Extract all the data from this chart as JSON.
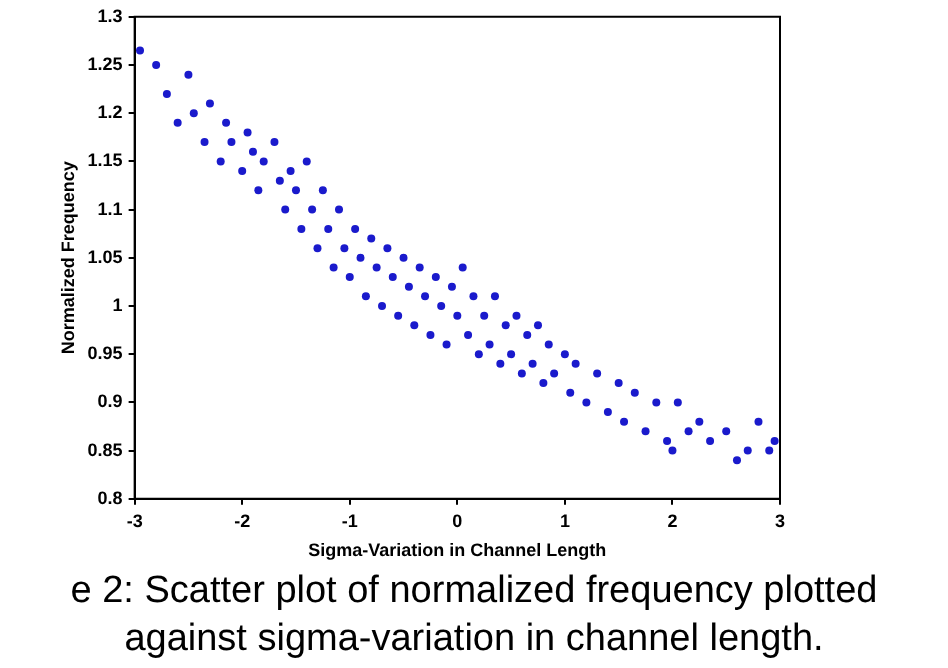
{
  "chart_data": {
    "type": "scatter",
    "xlabel": "Sigma-Variation in Channel Length",
    "ylabel": "Normalized Frequency",
    "xlim": [
      -3,
      3
    ],
    "xticks": [
      -3,
      -2,
      -1,
      0,
      1,
      2,
      3
    ],
    "ylim": [
      0.8,
      1.3
    ],
    "yticks": [
      0.8,
      0.85,
      0.9,
      0.95,
      1,
      1.05,
      1.1,
      1.15,
      1.2,
      1.25,
      1.3
    ],
    "grid": false,
    "legend": false,
    "marker": "circle",
    "annotations": [
      "e 2: Scatter plot of normalized frequency plotted",
      "against sigma-variation in channel length."
    ],
    "series": [
      {
        "color": "#1a1acc",
        "x": [
          -2.95,
          -2.8,
          -2.7,
          -2.6,
          -2.5,
          -2.45,
          -2.35,
          -2.3,
          -2.2,
          -2.15,
          -2.1,
          -2.0,
          -1.95,
          -1.9,
          -1.85,
          -1.8,
          -1.7,
          -1.65,
          -1.6,
          -1.55,
          -1.5,
          -1.45,
          -1.4,
          -1.35,
          -1.3,
          -1.25,
          -1.2,
          -1.15,
          -1.1,
          -1.05,
          -1.0,
          -0.95,
          -0.9,
          -0.85,
          -0.8,
          -0.75,
          -0.7,
          -0.65,
          -0.6,
          -0.55,
          -0.5,
          -0.45,
          -0.4,
          -0.35,
          -0.3,
          -0.25,
          -0.2,
          -0.15,
          -0.1,
          -0.05,
          0,
          0.05,
          0.1,
          0.15,
          0.2,
          0.25,
          0.3,
          0.35,
          0.4,
          0.45,
          0.5,
          0.55,
          0.6,
          0.65,
          0.7,
          0.75,
          0.8,
          0.85,
          0.9,
          1.0,
          1.05,
          1.1,
          1.2,
          1.3,
          1.4,
          1.5,
          1.55,
          1.65,
          1.75,
          1.85,
          1.95,
          2.0,
          2.05,
          2.15,
          2.25,
          2.35,
          2.5,
          2.6,
          2.7,
          2.8,
          2.9,
          2.95
        ],
        "values": [
          1.265,
          1.25,
          1.22,
          1.19,
          1.24,
          1.2,
          1.17,
          1.21,
          1.15,
          1.19,
          1.17,
          1.14,
          1.18,
          1.16,
          1.12,
          1.15,
          1.17,
          1.13,
          1.1,
          1.14,
          1.12,
          1.08,
          1.15,
          1.1,
          1.06,
          1.12,
          1.08,
          1.04,
          1.1,
          1.06,
          1.03,
          1.08,
          1.05,
          1.01,
          1.07,
          1.04,
          1.0,
          1.06,
          1.03,
          0.99,
          1.05,
          1.02,
          0.98,
          1.04,
          1.01,
          0.97,
          1.03,
          1.0,
          0.96,
          1.02,
          0.99,
          1.04,
          0.97,
          1.01,
          0.95,
          0.99,
          0.96,
          1.01,
          0.94,
          0.98,
          0.95,
          0.99,
          0.93,
          0.97,
          0.94,
          0.98,
          0.92,
          0.96,
          0.93,
          0.95,
          0.91,
          0.94,
          0.9,
          0.93,
          0.89,
          0.92,
          0.88,
          0.91,
          0.87,
          0.9,
          0.86,
          0.85,
          0.9,
          0.87,
          0.88,
          0.86,
          0.87,
          0.84,
          0.85,
          0.88,
          0.85,
          0.86
        ]
      }
    ]
  }
}
